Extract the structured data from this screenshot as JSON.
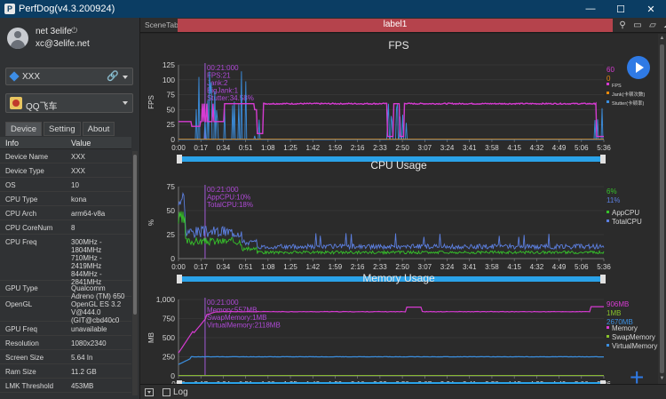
{
  "window": {
    "title": "PerfDog(v4.3.200924)",
    "controls": [
      "—",
      "☐",
      "✕"
    ]
  },
  "user": {
    "name": "net 3elife",
    "power_glyph": "⏻",
    "email": "xc@3elife.net"
  },
  "device_selector": {
    "value": "XXX",
    "link_glyph": "🔗"
  },
  "app_selector": {
    "value": "QQ飞车"
  },
  "tabs": [
    "Device",
    "Setting",
    "About"
  ],
  "info_table": {
    "headers": {
      "key": "Info",
      "value": "Value"
    },
    "rows": [
      {
        "key": "Device Name",
        "value": "XXX"
      },
      {
        "key": "Device Type",
        "value": "XXX"
      },
      {
        "key": "OS",
        "value": "10"
      },
      {
        "key": "CPU Type",
        "value": "kona"
      },
      {
        "key": "CPU Arch",
        "value": "arm64-v8a"
      },
      {
        "key": "CPU CoreNum",
        "value": "8"
      },
      {
        "key": "CPU Freq",
        "value": "300MHz -\n1804MHz\n710MHz -\n2419MHz\n844MHz -\n2841MHz"
      },
      {
        "key": "GPU Type",
        "value": "Qualcomm\nAdreno (TM) 650"
      },
      {
        "key": "OpenGL",
        "value": "OpenGL ES 3.2\nV@444.0\n(GIT@cbd40c0"
      },
      {
        "key": "GPU Freq",
        "value": "unavailable"
      },
      {
        "key": "Resolution",
        "value": "1080x2340"
      },
      {
        "key": "Screen Size",
        "value": "5.64 In"
      },
      {
        "key": "Ram Size",
        "value": "11.2 GB"
      },
      {
        "key": "LMK Threshold",
        "value": "453MB"
      }
    ]
  },
  "scene": {
    "tab_label": "SceneTab",
    "label": "label1"
  },
  "colors": {
    "fps": "#d63bd1",
    "jank": "#e8890c",
    "stutter": "#3b8fe0",
    "app_cpu": "#36c22a",
    "total_cpu": "#5c7fe0",
    "memory": "#d63bd1",
    "swap": "#88c22a",
    "virtual": "#3b8fe0",
    "slider": "#2aa2e8",
    "accent": "#2f7ae5",
    "label_bar": "#b5434c"
  },
  "time_ticks": [
    "0:00",
    "0:17",
    "0:34",
    "0:51",
    "1:08",
    "1:25",
    "1:42",
    "1:59",
    "2:16",
    "2:33",
    "2:50",
    "3:07",
    "3:24",
    "3:41",
    "3:58",
    "4:15",
    "4:32",
    "4:49",
    "5:06",
    "5:36"
  ],
  "cursor_time": "0:21",
  "charts": [
    {
      "id": "fps",
      "title": "FPS",
      "ylabel": "FPS",
      "yticks": [
        0,
        25,
        50,
        75,
        100,
        125
      ],
      "ylim": [
        0,
        125
      ],
      "tooltip": [
        "00:21:000",
        "FPS:21",
        "Jank:2",
        "BigJank:1",
        "Stutter:34.58%"
      ],
      "current_values": [
        "60",
        "0"
      ],
      "legend": [
        {
          "name": "FPS",
          "color": "#d63bd1"
        },
        {
          "name": "Jank(卡顿次数)",
          "color": "#e8890c"
        },
        {
          "name": "Stutter(卡顿率)",
          "color": "#3b8fe0"
        }
      ]
    },
    {
      "id": "cpu",
      "title": "CPU Usage",
      "ylabel": "%",
      "yticks": [
        0,
        25,
        50,
        75
      ],
      "ylim": [
        0,
        75
      ],
      "tooltip": [
        "00:21:000",
        "AppCPU:10%",
        "TotalCPU:18%"
      ],
      "current_values": [
        "6%",
        "11%"
      ],
      "legend": [
        {
          "name": "AppCPU",
          "color": "#36c22a"
        },
        {
          "name": "TotalCPU",
          "color": "#5c7fe0"
        }
      ]
    },
    {
      "id": "mem",
      "title": "Memory Usage",
      "ylabel": "MB",
      "yticks": [
        "0",
        "250",
        "500",
        "750",
        "1,000"
      ],
      "ylim": [
        0,
        1000
      ],
      "tooltip": [
        "00:21:000",
        "Memory:557MB",
        "SwapMemory:1MB",
        "VirtualMemory:2118MB"
      ],
      "current_values": [
        "906MB",
        "1MB",
        "2670MB"
      ],
      "legend": [
        {
          "name": "Memory",
          "color": "#d63bd1"
        },
        {
          "name": "SwapMemory",
          "color": "#88c22a"
        },
        {
          "name": "VirtualMemory",
          "color": "#3b8fe0"
        }
      ]
    }
  ],
  "bottom": {
    "log_label": "Log"
  }
}
